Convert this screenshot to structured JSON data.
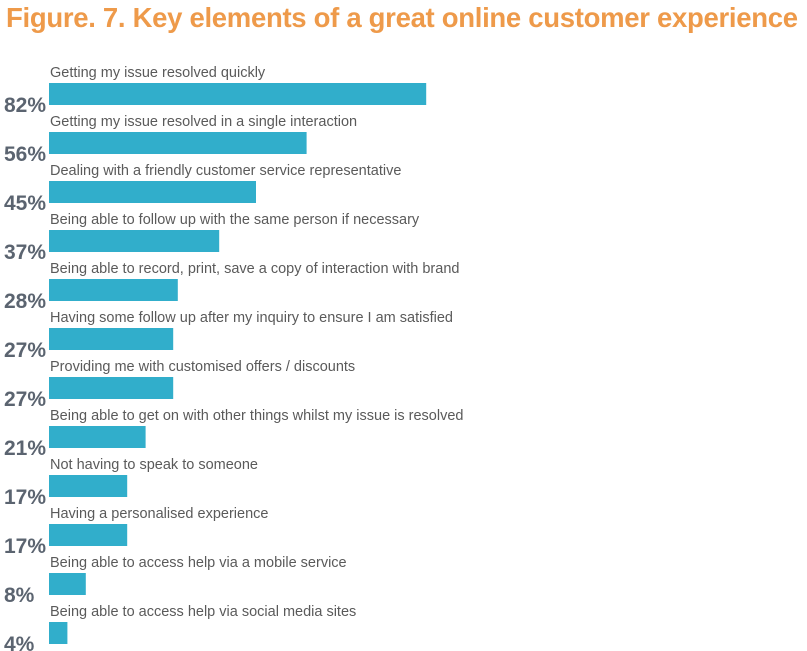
{
  "title": "Figure. 7. Key elements of a great online customer experience",
  "chart_data": {
    "type": "bar",
    "orientation": "horizontal",
    "title": "Figure. 7. Key elements of a great online customer experience",
    "bar_color": "#31aecb",
    "title_color": "#ee9a4a",
    "categories": [
      "Getting my issue resolved quickly",
      "Getting my issue resolved in a single interaction",
      "Dealing with a friendly customer service representative",
      "Being able to follow up with the same person if necessary",
      "Being able to record, print, save a copy of interaction with brand",
      "Having some follow up after my inquiry to ensure I am satisfied",
      "Providing me with customised offers / discounts",
      "Being able to get on with other things whilst my issue is resolved",
      "Not having to speak to someone",
      "Having a personalised experience",
      "Being able to access help via a mobile service",
      "Being able to access help via social media sites"
    ],
    "values": [
      82,
      56,
      45,
      37,
      28,
      27,
      27,
      21,
      17,
      17,
      8,
      4
    ],
    "value_labels": [
      "82%",
      "56%",
      "45%",
      "37%",
      "28%",
      "27%",
      "27%",
      "21%",
      "17%",
      "17%",
      "8%",
      "4%"
    ],
    "unit": "%",
    "grid": false,
    "legend": "none"
  }
}
